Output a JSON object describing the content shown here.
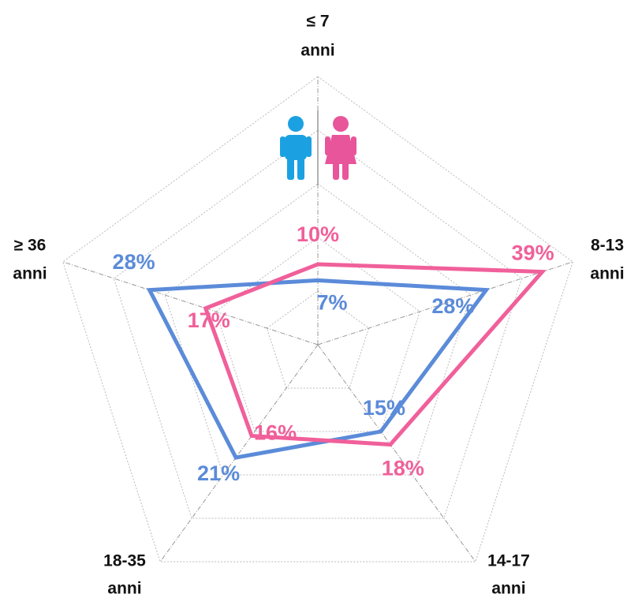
{
  "chart_data": {
    "type": "radar",
    "categories": [
      [
        "≤ 7",
        "anni"
      ],
      [
        "8-13",
        "anni"
      ],
      [
        "14-17",
        "anni"
      ],
      [
        "18-35",
        "anni"
      ],
      [
        "≥ 36",
        "anni"
      ]
    ],
    "rlim": [
      -5,
      45
    ],
    "rticks": [
      5,
      15,
      25,
      35,
      45
    ],
    "grid": true,
    "series": [
      {
        "color": "#5b8bd9",
        "values": [
          7,
          28,
          15,
          21,
          28
        ],
        "value_labels": [
          "7%",
          "28%",
          "15%",
          "21%",
          "28%"
        ]
      },
      {
        "color": "#f0609a",
        "values": [
          10,
          39,
          18,
          16,
          17
        ],
        "value_labels": [
          "10%",
          "39%",
          "18%",
          "16%",
          "17%"
        ]
      }
    ]
  }
}
